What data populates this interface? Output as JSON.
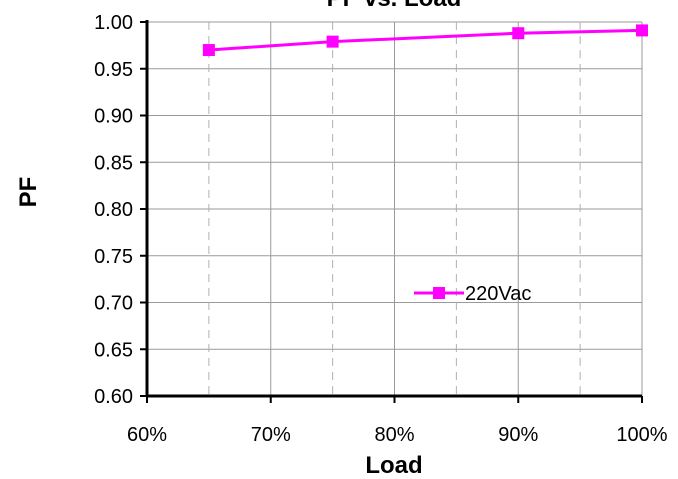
{
  "chart_data": {
    "type": "line",
    "title": "PF vs. Load",
    "xlabel": "Load",
    "ylabel": "PF",
    "x": [
      65,
      75,
      90,
      100
    ],
    "series": [
      {
        "name": "220Vac",
        "values": [
          0.97,
          0.979,
          0.988,
          0.991
        ],
        "color": "#ff00ff",
        "marker": "square"
      }
    ],
    "xlim": [
      60,
      100
    ],
    "ylim": [
      0.6,
      1.0
    ],
    "x_ticks": [
      60,
      70,
      80,
      90,
      100
    ],
    "x_tick_labels": [
      "60%",
      "70%",
      "80%",
      "90%",
      "100%"
    ],
    "y_ticks": [
      0.6,
      0.65,
      0.7,
      0.75,
      0.8,
      0.85,
      0.9,
      0.95,
      1.0
    ],
    "y_tick_labels": [
      "0.60",
      "0.65",
      "0.70",
      "0.75",
      "0.80",
      "0.85",
      "0.90",
      "0.95",
      "1.00"
    ],
    "grid": true,
    "legend_position": "lower-right"
  }
}
